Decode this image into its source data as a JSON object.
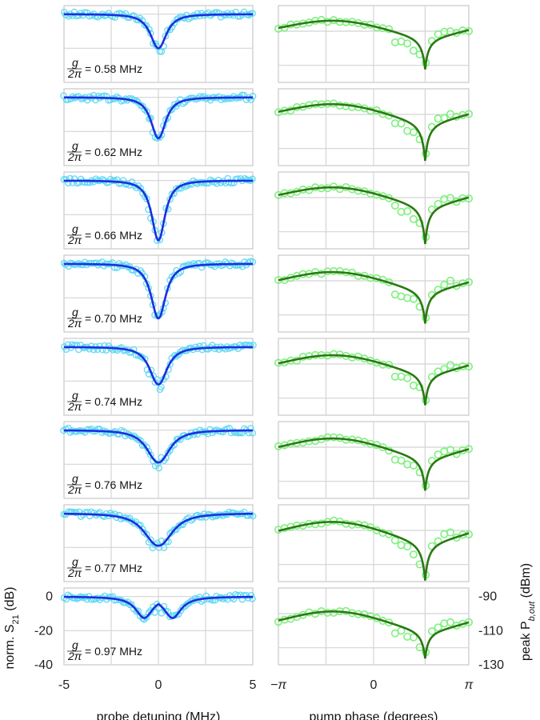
{
  "chart_data": [
    {
      "type": "scatter",
      "xlabel": "probe detuning (MHz)",
      "ylabel": "norm. S21 (dB)",
      "xlim": [
        -5,
        5
      ],
      "ylim": [
        -40,
        5
      ],
      "xticks": [
        "-5",
        "0",
        "5"
      ],
      "yticks": [
        "0",
        "-20",
        "-40"
      ],
      "grid": true,
      "data_color": "#5bd7f2",
      "fit_color": "#1a2fe0",
      "panels": [
        {
          "g_label": "g/2π = 0.58 MHz",
          "g_value": "= 0.58 MHz",
          "dip_center": 0.0,
          "dip_depth": -20,
          "dip_width": 0.55,
          "profile": "lorentzian",
          "split": 0.0
        },
        {
          "g_label": "g/2π = 0.62 MHz",
          "g_value": "= 0.62 MHz",
          "dip_center": 0.0,
          "dip_depth": -24,
          "dip_width": 0.5,
          "profile": "lorentzian",
          "split": 0.0
        },
        {
          "g_label": "g/2π = 0.66 MHz",
          "g_value": "= 0.66 MHz",
          "dip_center": 0.0,
          "dip_depth": -35,
          "dip_width": 0.45,
          "profile": "lorentzian",
          "split": 0.0
        },
        {
          "g_label": "g/2π = 0.70 MHz",
          "g_value": "= 0.70 MHz",
          "dip_center": 0.0,
          "dip_depth": -32,
          "dip_width": 0.5,
          "profile": "lorentzian",
          "split": 0.0
        },
        {
          "g_label": "g/2π = 0.74 MHz",
          "g_value": "= 0.74 MHz",
          "dip_center": 0.0,
          "dip_depth": -22,
          "dip_width": 0.6,
          "profile": "lorentzian",
          "split": 0.0
        },
        {
          "g_label": "g/2π = 0.76 MHz",
          "g_value": "= 0.76 MHz",
          "dip_center": 0.0,
          "dip_depth": -19,
          "dip_width": 0.8,
          "profile": "lorentzian",
          "split": 0.0
        },
        {
          "g_label": "g/2π = 0.77 MHz",
          "g_value": "= 0.77 MHz",
          "dip_center": 0.0,
          "dip_depth": -19,
          "dip_width": 1.0,
          "profile": "lorentzian",
          "split": 0.0
        },
        {
          "g_label": "g/2π = 0.97 MHz",
          "g_value": "= 0.97 MHz",
          "dip_center": 0.0,
          "dip_depth": -12,
          "dip_width": 0.55,
          "profile": "split",
          "split": 0.75
        }
      ]
    },
    {
      "type": "scatter",
      "xlabel": "pump phase (degrees)",
      "ylabel": "peak P_b,out (dBm)",
      "xlim": [
        -3.14159,
        3.14159
      ],
      "ylim": [
        -130,
        -85
      ],
      "xticks": [
        "−π",
        "0",
        "π"
      ],
      "yticks": [
        "-90",
        "-110",
        "-130"
      ],
      "grid": true,
      "data_color": "#7ef07e",
      "fit_color": "#2a7a12",
      "panels": [
        {
          "dip_phase": 1.7,
          "top": -93,
          "depth": -118,
          "curvature": 0.9
        },
        {
          "dip_phase": 1.7,
          "top": -93,
          "depth": -123,
          "curvature": 0.95
        },
        {
          "dip_phase": 1.7,
          "top": -93,
          "depth": -123,
          "curvature": 0.95
        },
        {
          "dip_phase": 1.7,
          "top": -94,
          "depth": -120,
          "curvature": 1.0
        },
        {
          "dip_phase": 1.7,
          "top": -94,
          "depth": -119,
          "curvature": 1.0
        },
        {
          "dip_phase": 1.7,
          "top": -94,
          "depth": -120,
          "curvature": 1.05
        },
        {
          "dip_phase": 1.7,
          "top": -94,
          "depth": -124,
          "curvature": 1.1
        },
        {
          "dip_phase": 1.7,
          "top": -98,
          "depth": -120,
          "curvature": 1.1
        }
      ]
    }
  ],
  "labels": {
    "left_y": "norm. S",
    "left_y_sub": "21",
    "left_y_unit": " (dB)",
    "right_y": "peak P",
    "right_y_sub": "b,out",
    "right_y_unit": " (dBm)",
    "g_num": "g",
    "g_den": "2π"
  }
}
